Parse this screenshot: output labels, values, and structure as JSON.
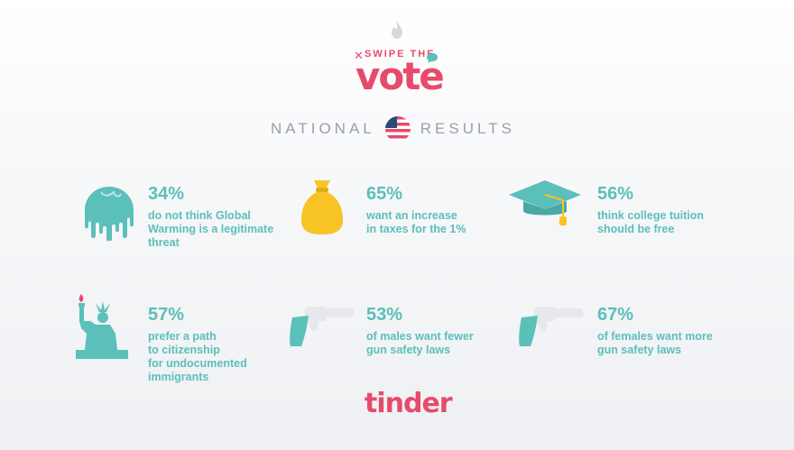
{
  "header": {
    "swipe_the": "SWIPE THE",
    "vote": "vote",
    "national": "NATIONAL",
    "results": "RESULTS"
  },
  "stats": [
    {
      "percent": "34%",
      "lines": [
        "do not think Global",
        "Warming is a legitimate",
        "threat"
      ],
      "icon": "melting-globe-icon"
    },
    {
      "percent": "65%",
      "lines": [
        "want an increase",
        "in taxes for the 1%"
      ],
      "icon": "money-bag-icon"
    },
    {
      "percent": "56%",
      "lines": [
        "think college tuition",
        "should be free"
      ],
      "icon": "graduation-cap-icon"
    },
    {
      "percent": "57%",
      "lines": [
        "prefer a path",
        "to citizenship",
        "for undocumented",
        "immigrants"
      ],
      "icon": "statue-of-liberty-icon"
    },
    {
      "percent": "53%",
      "lines": [
        "of males want fewer",
        "gun safety laws"
      ],
      "icon": "revolver-icon"
    },
    {
      "percent": "67%",
      "lines": [
        "of females want more",
        "gun safety laws"
      ],
      "icon": "revolver-icon"
    }
  ],
  "footer": {
    "brand": "tinder"
  },
  "colors": {
    "accent": "#e84a6b",
    "teal": "#5bbfba",
    "gold": "#f7c325",
    "gray": "#9aa0a8"
  }
}
